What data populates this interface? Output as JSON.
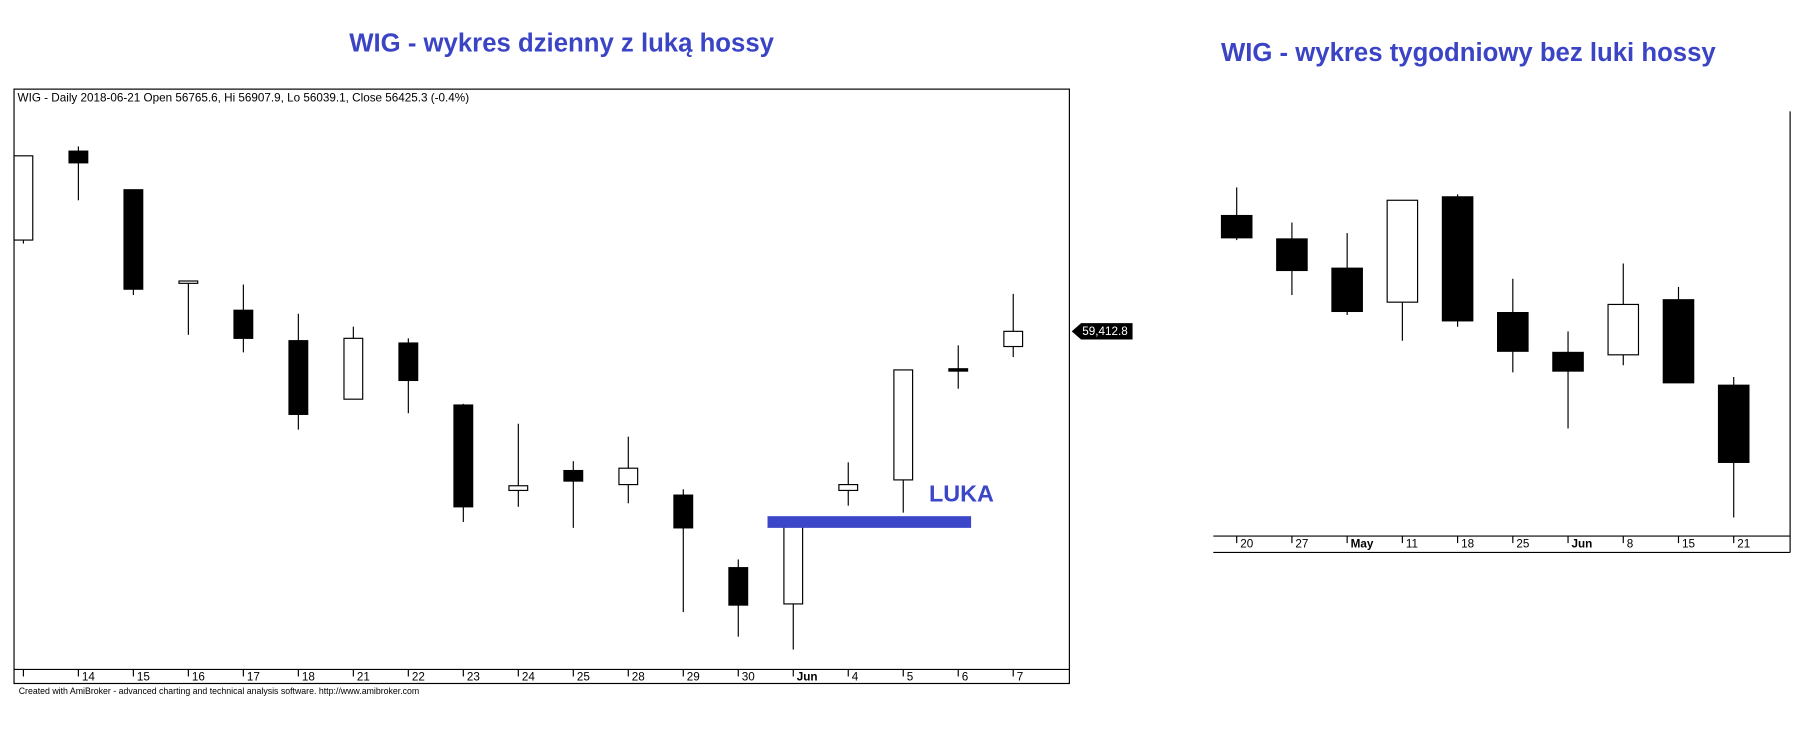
{
  "chart_data": [
    {
      "type": "candlestick",
      "title": "WIG - wykres dzienny z luką hossy",
      "header": "WIG - Daily 2018-06-21 Open 56765.6, Hi 56907.9, Lo 56039.1, Close 56425.3 (-0.4%)",
      "footer": "Created with AmiBroker - advanced charting and technical analysis software. http://www.amibroker.com",
      "categories": [
        null,
        "14",
        "15",
        "16",
        "17",
        "18",
        "21",
        "22",
        "23",
        "24",
        "25",
        "28",
        "29",
        "30",
        "Jun",
        "4",
        "5",
        "6",
        "7"
      ],
      "open": [
        60115,
        60799,
        60502,
        59782,
        59575,
        59341,
        58891,
        59323,
        58846,
        58189,
        58342,
        58234,
        58153,
        57595,
        57316,
        58189,
        58270,
        59125,
        59296
      ],
      "high": [
        60763,
        60835,
        60502,
        59800,
        59773,
        59548,
        59449,
        59359,
        58855,
        58702,
        58414,
        58603,
        58198,
        57658,
        57946,
        58405,
        59116,
        59305,
        59701
      ],
      "low": [
        60088,
        60421,
        59692,
        59386,
        59251,
        58657,
        58891,
        58783,
        57946,
        58063,
        57901,
        58090,
        57253,
        57064,
        56965,
        58072,
        58018,
        58972,
        59215
      ],
      "close": [
        60763,
        60709,
        59737,
        59800,
        59359,
        58774,
        59359,
        59035,
        58063,
        58225,
        58261,
        58360,
        57901,
        57307,
        57946,
        58234,
        59116,
        59107,
        59412.8
      ],
      "up_color": "#ffffff",
      "down_color": "#000000",
      "ylim": [
        56812,
        61276
      ],
      "last_price": {
        "value": 59412.8,
        "label": "59,412.8"
      },
      "annotation": {
        "label": "LUKA",
        "value": 57946,
        "color": "#3c46c8"
      }
    },
    {
      "type": "candlestick",
      "title": "WIG - wykres tygodniowy bez luki hossy",
      "categories": [
        "20",
        "27",
        "May",
        "11",
        "18",
        "25",
        "Jun",
        "8",
        "15",
        "21"
      ],
      "open": [
        58155,
        57991,
        57786,
        57548,
        58286,
        57475,
        57196,
        57179,
        57565,
        56966
      ],
      "high": [
        58352,
        58106,
        58032,
        58262,
        58303,
        57712,
        57343,
        57819,
        57655,
        57024
      ],
      "low": [
        57983,
        57598,
        57458,
        57278,
        57376,
        57056,
        56663,
        57106,
        56983,
        56039.1
      ],
      "close": [
        57999,
        57770,
        57483,
        58262,
        57417,
        57204,
        57065,
        57532,
        56983,
        56425.3
      ],
      "up_color": "#ffffff",
      "down_color": "#000000",
      "ylim": [
        55909,
        58885
      ]
    }
  ]
}
